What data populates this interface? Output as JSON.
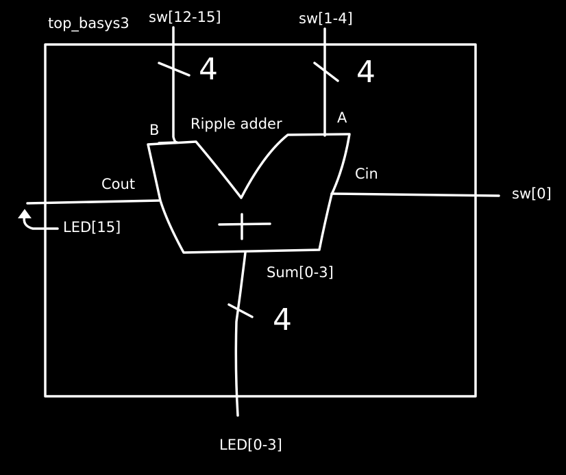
{
  "diagram": {
    "module_name": "top_basys3",
    "block_name": "Ripple adder",
    "block_symbol": "+",
    "input_b_name": "B",
    "input_a_name": "A",
    "carry_in_name": "Cin",
    "carry_out_name": "Cout",
    "sum_name": "Sum[0-3]",
    "port_b_input": "sw[12-15]",
    "port_a_input": "sw[1-4]",
    "port_carry_in": "sw[0]",
    "port_carry_out": "LED[15]",
    "port_sum_output": "LED[0-3]",
    "bus_width_b": "4",
    "bus_width_a": "4",
    "bus_width_sum": "4",
    "colors": {
      "background": "#000000",
      "stroke": "#ffffff",
      "text": "#ffffff"
    }
  }
}
